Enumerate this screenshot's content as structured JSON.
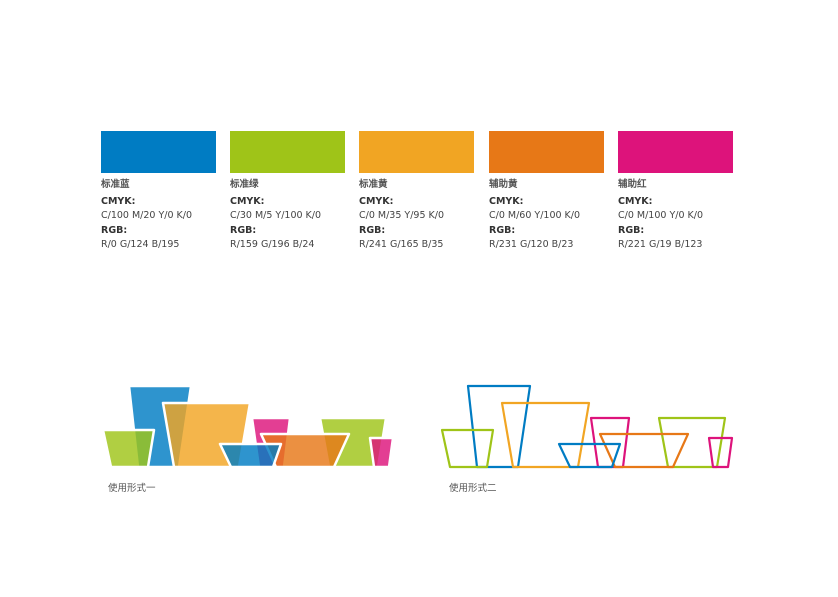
{
  "swatches": [
    {
      "name": "标准蓝",
      "cmyk_label": "CMYK:",
      "cmyk": "C/100  M/20  Y/0  K/0",
      "rgb_label": "RGB:",
      "rgb": "R/0  G/124  B/195",
      "color": "#007CC3"
    },
    {
      "name": "标准绿",
      "cmyk_label": "CMYK:",
      "cmyk": "C/30  M/5  Y/100  K/0",
      "rgb_label": "RGB:",
      "rgb": "R/159  G/196  B/24",
      "color": "#9FC418"
    },
    {
      "name": "标准黄",
      "cmyk_label": "CMYK:",
      "cmyk": "C/0  M/35  Y/95  K/0",
      "rgb_label": "RGB:",
      "rgb": "R/241  G/165  B/35",
      "color": "#F1A523"
    },
    {
      "name": "辅助黄",
      "cmyk_label": "CMYK:",
      "cmyk": "C/0  M/60  Y/100  K/0",
      "rgb_label": "RGB:",
      "rgb": "R/231  G/120  B/23",
      "color": "#E77817"
    },
    {
      "name": "辅助红",
      "cmyk_label": "CMYK:",
      "cmyk": "C/0  M/100  Y/0  K/0",
      "rgb_label": "RGB:",
      "rgb": "R/221  G/19  B/123",
      "color": "#DD137B"
    }
  ],
  "usage": {
    "form1": "使用形式一",
    "form2": "使用形式二"
  }
}
